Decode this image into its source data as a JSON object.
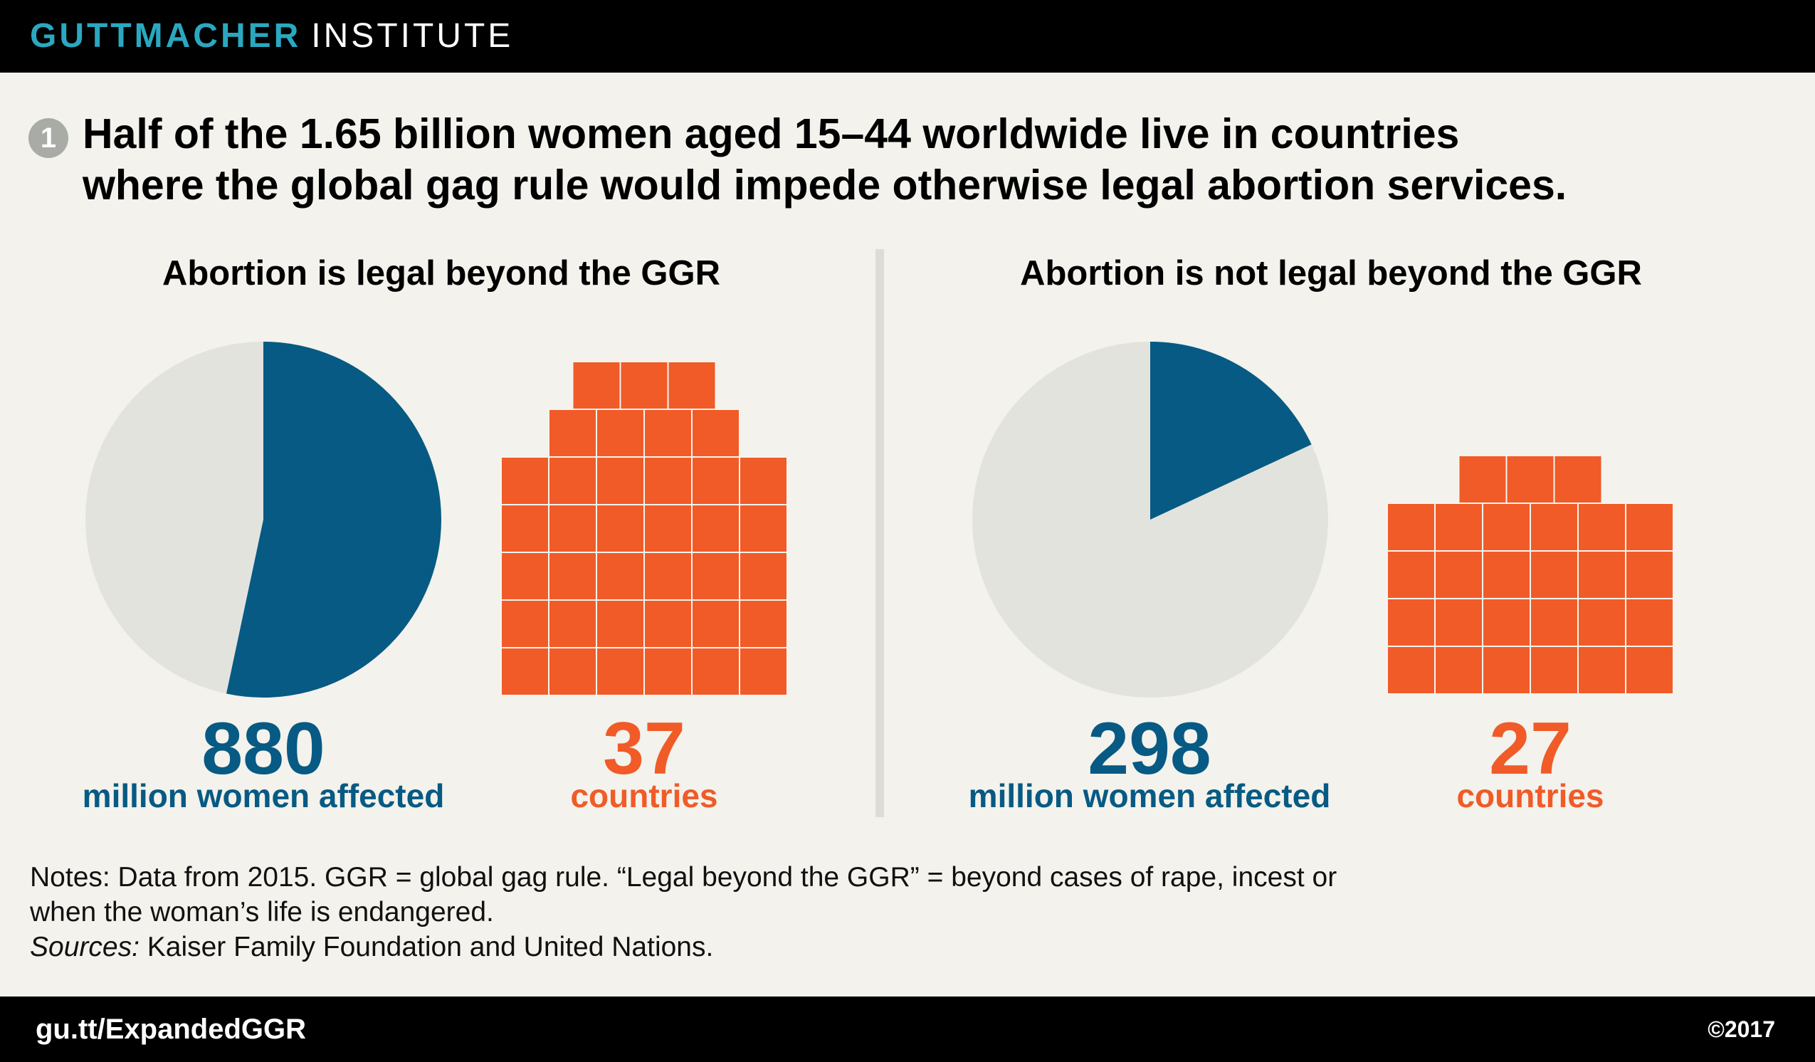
{
  "header": {
    "brand_primary": "GUTTMACHER",
    "brand_secondary": "INSTITUTE"
  },
  "headline": {
    "number": "1",
    "text_line1": "Half of the 1.65 billion women aged 15–44 worldwide live in countries",
    "text_line2": "where the global gag rule would impede otherwise legal abortion services."
  },
  "chart_data": [
    {
      "type": "pie",
      "title": "Abortion is legal beyond the GGR",
      "total_women_millions": 1650,
      "affected_women_millions": 880,
      "affected_women_text": "880",
      "women_label": "million women affected",
      "countries": 37,
      "countries_text": "37",
      "countries_label": "countries",
      "countries_rows": [
        3,
        4,
        6,
        6,
        6,
        6,
        6
      ]
    },
    {
      "type": "pie",
      "title": "Abortion is not legal beyond the GGR",
      "total_women_millions": 1650,
      "affected_women_millions": 298,
      "affected_women_text": "298",
      "women_label": "million women affected",
      "countries": 27,
      "countries_text": "27",
      "countries_label": "countries",
      "countries_rows": [
        3,
        6,
        6,
        6,
        6
      ]
    }
  ],
  "colors": {
    "affected": "#075a83",
    "remainder": "#e3e3de",
    "countries": "#f05b28",
    "countries_grid": "#f6f4ee"
  },
  "notes": {
    "line1": "Notes: Data from 2015. GGR = global gag rule. “Legal beyond the GGR” = beyond cases of rape, incest or",
    "line2": "when the woman’s life is endangered.",
    "sources_label": "Sources:",
    "sources_text": " Kaiser Family Foundation and United Nations."
  },
  "footer": {
    "url": "gu.tt/ExpandedGGR",
    "copyright": "©2017"
  }
}
